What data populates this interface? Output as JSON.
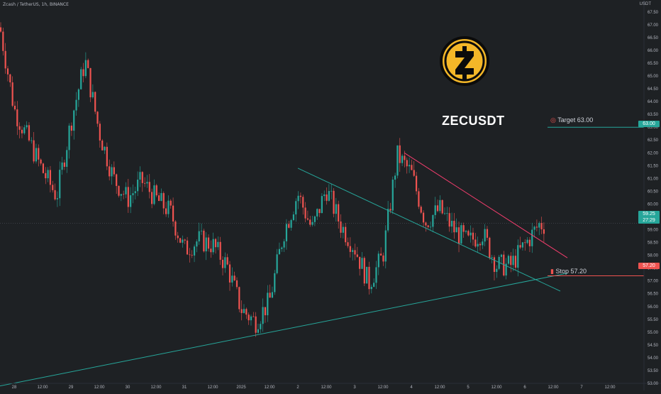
{
  "header": {
    "symbol_title": "Zcash / TetherUS, 1h, BINANCE",
    "unit": "USDT"
  },
  "overlay": {
    "title": "ZECUSDT",
    "logo_name": "zcash-logo",
    "target_label": "Target 63.00",
    "stop_label": "Stop 57.20"
  },
  "price_axis": {
    "ticks": [
      "67.50",
      "67.00",
      "66.50",
      "66.00",
      "65.50",
      "65.00",
      "64.50",
      "64.00",
      "63.50",
      "63.00",
      "62.50",
      "62.00",
      "61.50",
      "61.00",
      "60.50",
      "60.00",
      "59.50",
      "59.00",
      "58.50",
      "58.00",
      "57.50",
      "57.00",
      "56.50",
      "56.00",
      "55.50",
      "55.00",
      "54.50",
      "54.00",
      "53.50",
      "53.00"
    ],
    "current_price": "59.25",
    "countdown": "27:29",
    "target_tag": "63.00",
    "stop_tag": "57.20"
  },
  "time_axis": {
    "ticks": [
      "28",
      "12:00",
      "29",
      "12:00",
      "30",
      "12:00",
      "31",
      "12:00",
      "2025",
      "12:00",
      "2",
      "12:00",
      "3",
      "12:00",
      "4",
      "12:00",
      "5",
      "12:00",
      "6",
      "12:00",
      "7",
      "12:00"
    ]
  },
  "colors": {
    "background": "#1e2124",
    "bull": "#26a69a",
    "bear": "#ef5350",
    "grid": "#2a2e39",
    "axis_text": "#b2b5be",
    "target_line": "#26a69a",
    "stop_line": "#ef5350",
    "resistance_line": "#f23d6d",
    "support_line": "#26a69a",
    "logo_gold": "#f4b728"
  },
  "chart_data": {
    "type": "candlestick",
    "symbol": "ZECUSDT",
    "timeframe": "1h",
    "exchange": "BINANCE",
    "ylim": [
      53.0,
      67.8
    ],
    "grid": false,
    "close_path": [
      {
        "x": "Dec 27 18:00",
        "y": 66.9
      },
      {
        "x": "Dec 28 00:00",
        "y": 63.7
      },
      {
        "x": "Dec 28 06:00",
        "y": 62.5
      },
      {
        "x": "Dec 28 12:00",
        "y": 61.3
      },
      {
        "x": "Dec 28 18:00",
        "y": 60.3
      },
      {
        "x": "Dec 29 00:00",
        "y": 63.2
      },
      {
        "x": "Dec 29 06:00",
        "y": 65.6
      },
      {
        "x": "Dec 29 12:00",
        "y": 62.8
      },
      {
        "x": "Dec 29 18:00",
        "y": 61.0
      },
      {
        "x": "Dec 30 00:00",
        "y": 60.2
      },
      {
        "x": "Dec 30 06:00",
        "y": 60.9
      },
      {
        "x": "Dec 30 12:00",
        "y": 60.2
      },
      {
        "x": "Dec 30 18:00",
        "y": 59.7
      },
      {
        "x": "Dec 31 00:00",
        "y": 58.2
      },
      {
        "x": "Dec 31 06:00",
        "y": 58.6
      },
      {
        "x": "Dec 31 12:00",
        "y": 58.4
      },
      {
        "x": "Dec 31 18:00",
        "y": 57.6
      },
      {
        "x": "Jan 1 00:00",
        "y": 55.9
      },
      {
        "x": "Jan 1 06:00",
        "y": 55.4
      },
      {
        "x": "Jan 1 12:00",
        "y": 56.2
      },
      {
        "x": "Jan 1 18:00",
        "y": 58.9
      },
      {
        "x": "Jan 2 00:00",
        "y": 60.4
      },
      {
        "x": "Jan 2 06:00",
        "y": 59.0
      },
      {
        "x": "Jan 2 12:00",
        "y": 60.6
      },
      {
        "x": "Jan 2 18:00",
        "y": 59.2
      },
      {
        "x": "Jan 3 00:00",
        "y": 58.3
      },
      {
        "x": "Jan 3 06:00",
        "y": 56.9
      },
      {
        "x": "Jan 3 12:00",
        "y": 58.0
      },
      {
        "x": "Jan 3 18:00",
        "y": 61.9
      },
      {
        "x": "Jan 4 00:00",
        "y": 61.2
      },
      {
        "x": "Jan 4 06:00",
        "y": 59.3
      },
      {
        "x": "Jan 4 12:00",
        "y": 59.8
      },
      {
        "x": "Jan 4 18:00",
        "y": 59.0
      },
      {
        "x": "Jan 5 00:00",
        "y": 58.5
      },
      {
        "x": "Jan 5 06:00",
        "y": 58.9
      },
      {
        "x": "Jan 5 12:00",
        "y": 57.6
      },
      {
        "x": "Jan 5 18:00",
        "y": 57.6
      },
      {
        "x": "Jan 6 00:00",
        "y": 58.4
      },
      {
        "x": "Jan 6 06:00",
        "y": 59.2
      }
    ],
    "drawings": {
      "target_level": 63.0,
      "stop_level": 57.2,
      "descending_channel_top": [
        {
          "x": "Jan 3 21:00",
          "y": 62.0
        },
        {
          "x": "Jan 6 18:00",
          "y": 57.9
        }
      ],
      "descending_channel_bottom": [
        {
          "x": "Jan 2 00:00",
          "y": 61.4
        },
        {
          "x": "Jan 6 15:00",
          "y": 56.6
        }
      ],
      "rising_support": [
        {
          "x": "Dec 27 18:00",
          "y": 52.9
        },
        {
          "x": "Jan 6 18:00",
          "y": 57.3
        }
      ]
    }
  }
}
